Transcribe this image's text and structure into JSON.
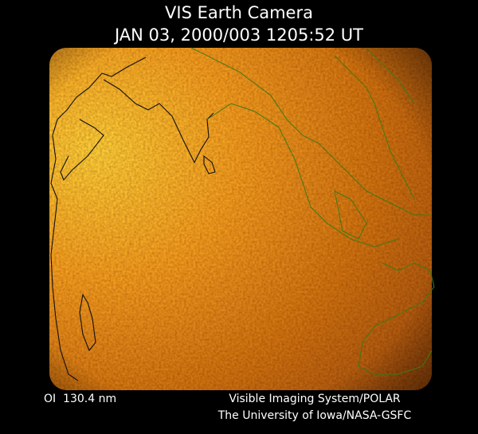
{
  "header": {
    "title": "VIS Earth Camera",
    "timestamp": "JAN 03, 2000/003 1205:52 UT"
  },
  "footer": {
    "wavelength": "OI  130.4 nm",
    "instrument": "Visible Imaging System/POLAR",
    "institution": "The University of Iowa/NASA-GSFC"
  }
}
